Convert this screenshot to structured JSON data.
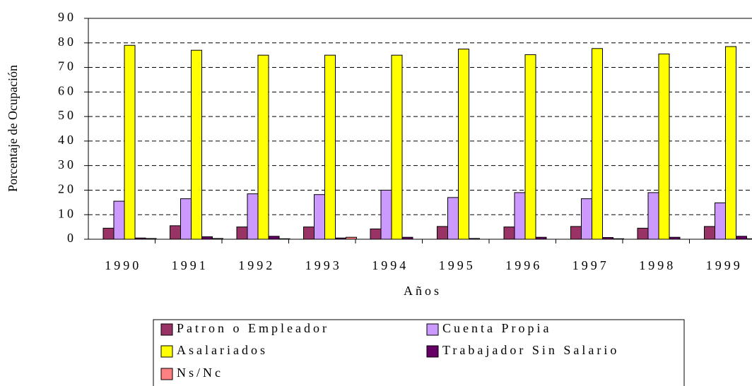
{
  "chart_data": {
    "type": "bar",
    "y_label": "Porcentaje de Ocupación",
    "x_label": "Años",
    "categories": [
      "1990",
      "1991",
      "1992",
      "1993",
      "1994",
      "1995",
      "1996",
      "1997",
      "1998",
      "1999"
    ],
    "series": [
      {
        "name": "Patron o Empleador",
        "color": "#993366",
        "values": [
          4.5,
          5.5,
          5,
          5,
          4.2,
          5.2,
          5,
          5.2,
          4.5,
          5.2
        ]
      },
      {
        "name": "Cuenta Propia",
        "color": "#cc99ff",
        "values": [
          15.5,
          16.5,
          18.5,
          18.2,
          20,
          17,
          19,
          16.5,
          19,
          14.8
        ]
      },
      {
        "name": "Asalariados",
        "color": "#ffff00",
        "values": [
          79,
          77,
          75,
          75,
          75,
          77.5,
          75.2,
          77.7,
          75.5,
          78.5
        ]
      },
      {
        "name": "Trabajador Sin Salario",
        "color": "#660066",
        "values": [
          0.5,
          1,
          1.2,
          0.5,
          0.8,
          0.3,
          0.8,
          0.7,
          0.8,
          1.2
        ]
      },
      {
        "name": "Ns/Nc",
        "color": "#ff8080",
        "values": [
          0.3,
          0.3,
          0.2,
          0.8,
          0,
          0,
          0,
          0.2,
          0,
          0.2
        ]
      }
    ],
    "ylim": [
      0,
      90
    ],
    "yticks": [
      0,
      10,
      20,
      30,
      40,
      50,
      60,
      70,
      80,
      90
    ],
    "grid": true
  }
}
